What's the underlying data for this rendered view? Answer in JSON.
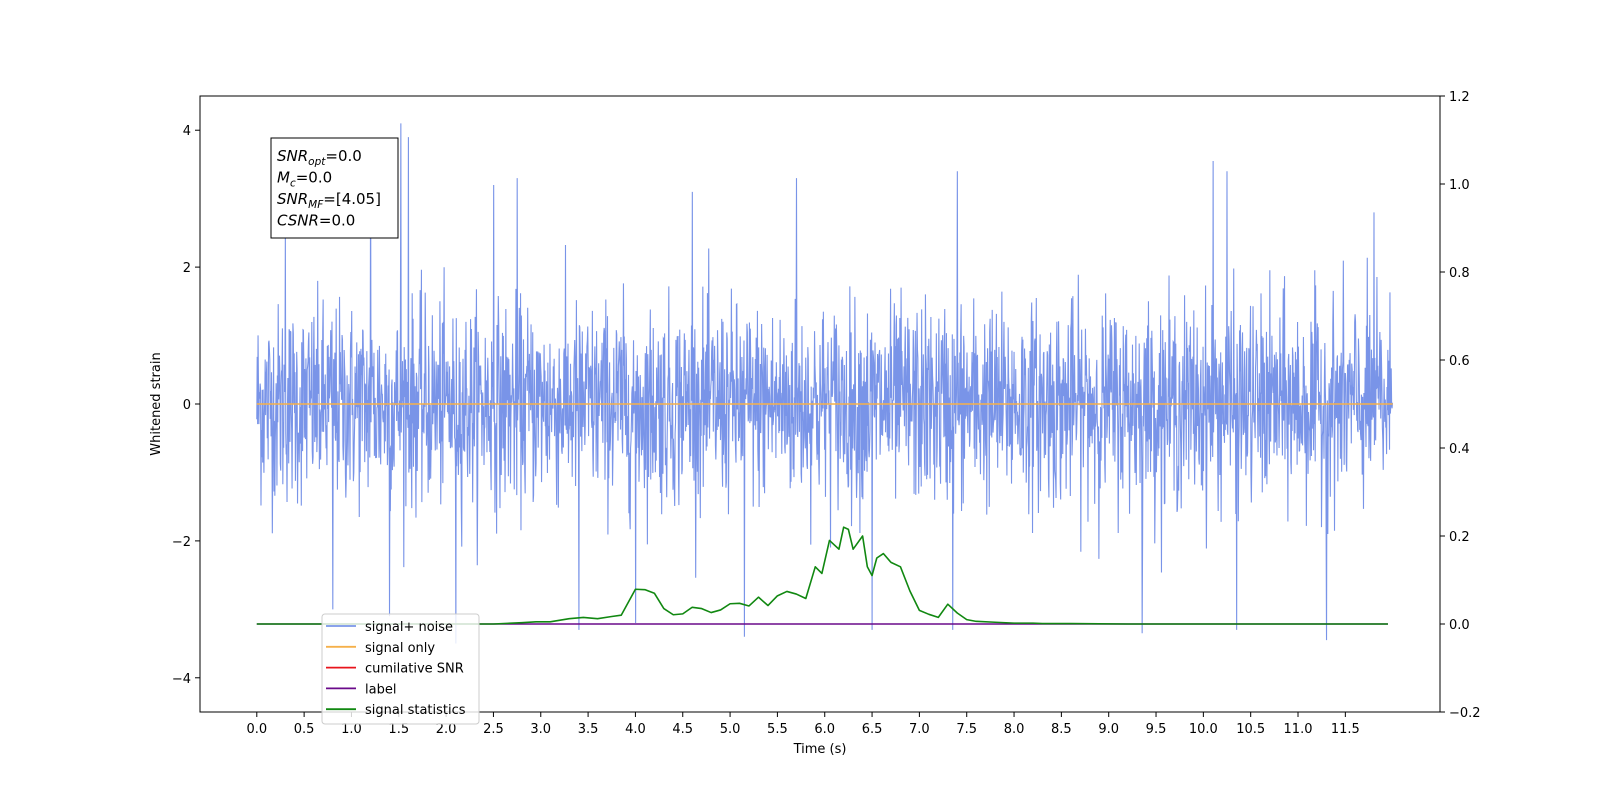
{
  "chart_data": {
    "type": "line",
    "xlabel": "Time (s)",
    "ylabel": "Whitened strain",
    "title": "",
    "xlim": [
      -0.6,
      12.5
    ],
    "ylim": [
      -4.5,
      4.5
    ],
    "y2lim": [
      -0.2,
      1.2
    ],
    "x_ticks": [
      "0.0",
      "0.5",
      "1.0",
      "1.5",
      "2.0",
      "2.5",
      "3.0",
      "3.5",
      "4.0",
      "4.5",
      "5.0",
      "5.5",
      "6.0",
      "6.5",
      "7.0",
      "7.5",
      "8.0",
      "8.5",
      "9.0",
      "9.5",
      "10.0",
      "10.5",
      "11.0",
      "11.5"
    ],
    "y_ticks": [
      "4",
      "2",
      "0",
      "−2",
      "−4"
    ],
    "y2_ticks": [
      "1.2",
      "1.0",
      "0.8",
      "0.6",
      "0.4",
      "0.2",
      "0.0",
      "−0.2"
    ],
    "grid": false,
    "legend_position": "lower-left",
    "stats_box": [
      {
        "label": "SNR",
        "sub": "opt",
        "value": "=0.0"
      },
      {
        "label": "M",
        "sub": "c",
        "value": "=0.0"
      },
      {
        "label": "SNR",
        "sub": "MF",
        "value": "=[4.05]"
      },
      {
        "label": "CSNR",
        "sub": "",
        "value": "=0.0"
      }
    ],
    "series": [
      {
        "name": "signal+ noise",
        "color": "#7994e8",
        "axis": "left",
        "style": "dense-noise",
        "x_range": [
          0.0,
          12.0
        ],
        "envelope": [
          -2.0,
          2.0
        ],
        "peaks": [
          {
            "x": 0.3,
            "y": 2.5
          },
          {
            "x": 1.2,
            "y": 3.6
          },
          {
            "x": 1.52,
            "y": 4.1
          },
          {
            "x": 1.6,
            "y": 3.9
          },
          {
            "x": 2.5,
            "y": 3.2
          },
          {
            "x": 2.75,
            "y": 3.3
          },
          {
            "x": 4.6,
            "y": 3.1
          },
          {
            "x": 5.7,
            "y": 3.3
          },
          {
            "x": 7.4,
            "y": 3.4
          },
          {
            "x": 10.1,
            "y": 3.55
          },
          {
            "x": 10.25,
            "y": 3.4
          },
          {
            "x": 11.8,
            "y": 2.8
          }
        ],
        "troughs": [
          {
            "x": 0.8,
            "y": -3.0
          },
          {
            "x": 1.4,
            "y": -3.1
          },
          {
            "x": 2.1,
            "y": -3.5
          },
          {
            "x": 3.4,
            "y": -3.3
          },
          {
            "x": 4.0,
            "y": -3.2
          },
          {
            "x": 5.15,
            "y": -3.4
          },
          {
            "x": 6.5,
            "y": -3.3
          },
          {
            "x": 7.35,
            "y": -3.3
          },
          {
            "x": 9.35,
            "y": -3.35
          },
          {
            "x": 10.35,
            "y": -3.3
          },
          {
            "x": 11.3,
            "y": -3.45
          }
        ]
      },
      {
        "name": "signal only",
        "color": "#f5b04a",
        "axis": "left",
        "x": [
          0.0,
          12.0
        ],
        "y": [
          0.0,
          0.0
        ]
      },
      {
        "name": "cumilative SNR",
        "color": "#e8141c",
        "axis": "right",
        "x": [],
        "y": []
      },
      {
        "name": "label",
        "color": "#6a0a8a",
        "axis": "right",
        "x": [
          0.0,
          11.95
        ],
        "y": [
          0.0,
          0.0
        ]
      },
      {
        "name": "signal statistics",
        "color": "#118811",
        "axis": "right",
        "x": [
          0.0,
          2.5,
          2.8,
          2.95,
          3.1,
          3.3,
          3.45,
          3.6,
          3.75,
          3.85,
          4.0,
          4.1,
          4.2,
          4.3,
          4.4,
          4.5,
          4.6,
          4.7,
          4.8,
          4.9,
          5.0,
          5.1,
          5.2,
          5.3,
          5.4,
          5.5,
          5.6,
          5.7,
          5.8,
          5.9,
          5.97,
          6.05,
          6.15,
          6.2,
          6.25,
          6.3,
          6.4,
          6.45,
          6.5,
          6.55,
          6.62,
          6.7,
          6.8,
          6.9,
          7.0,
          7.1,
          7.2,
          7.3,
          7.4,
          7.5,
          7.6,
          7.8,
          8.0,
          8.2,
          8.3,
          8.6,
          9.2,
          11.95
        ],
        "y": [
          0.0,
          0.0,
          0.003,
          0.005,
          0.005,
          0.012,
          0.015,
          0.012,
          0.017,
          0.02,
          0.079,
          0.078,
          0.07,
          0.035,
          0.021,
          0.023,
          0.038,
          0.035,
          0.026,
          0.032,
          0.046,
          0.047,
          0.041,
          0.061,
          0.042,
          0.064,
          0.074,
          0.068,
          0.058,
          0.13,
          0.115,
          0.19,
          0.17,
          0.22,
          0.215,
          0.17,
          0.2,
          0.13,
          0.11,
          0.15,
          0.16,
          0.14,
          0.13,
          0.075,
          0.031,
          0.022,
          0.015,
          0.045,
          0.025,
          0.01,
          0.006,
          0.004,
          0.002,
          0.002,
          0.001,
          0.001,
          0.0,
          0.0
        ]
      }
    ]
  }
}
